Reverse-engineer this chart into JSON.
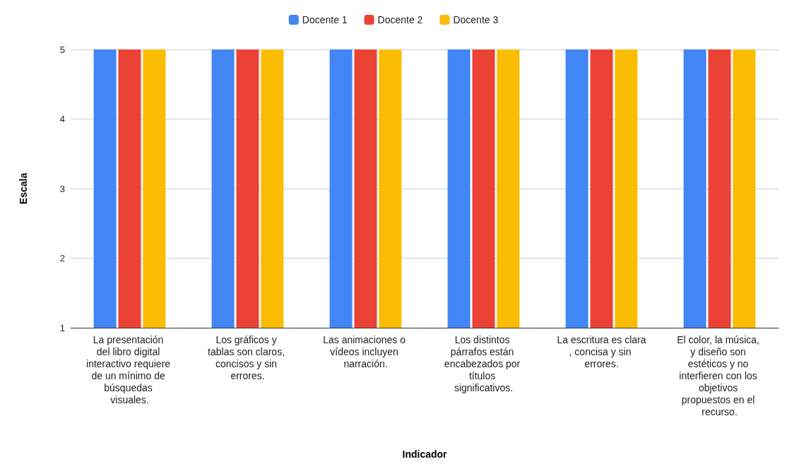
{
  "chart_data": {
    "type": "bar",
    "xlabel": "Indicador",
    "ylabel": "Escala",
    "categories": [
      "La presentación del libro digital interactivo requiere de un mínimo de búsquedas visuales.",
      "Los gráficos y tablas son claros, concisos y sin errores.",
      "Las animaciones o vídeos incluyen narración.",
      "Los distintos párrafos están encabezados por títulos significativos.",
      "La escritura es clara, concisa y sin errores.",
      "El color, la música, y diseño son estéticos y no interfieren con los objetivos propuestos en el recurso."
    ],
    "series": [
      {
        "name": "Docente 1",
        "color": "#4285f4",
        "values": [
          5,
          5,
          5,
          5,
          5,
          5
        ]
      },
      {
        "name": "Docente 2",
        "color": "#ea4335",
        "values": [
          5,
          5,
          5,
          5,
          5,
          5
        ]
      },
      {
        "name": "Docente 3",
        "color": "#fbbc04",
        "values": [
          5,
          5,
          5,
          5,
          5,
          5
        ]
      }
    ],
    "ylim": [
      1,
      5
    ],
    "yticks": [
      1,
      2,
      3,
      4,
      5
    ],
    "grid": "y",
    "legend": "top"
  }
}
